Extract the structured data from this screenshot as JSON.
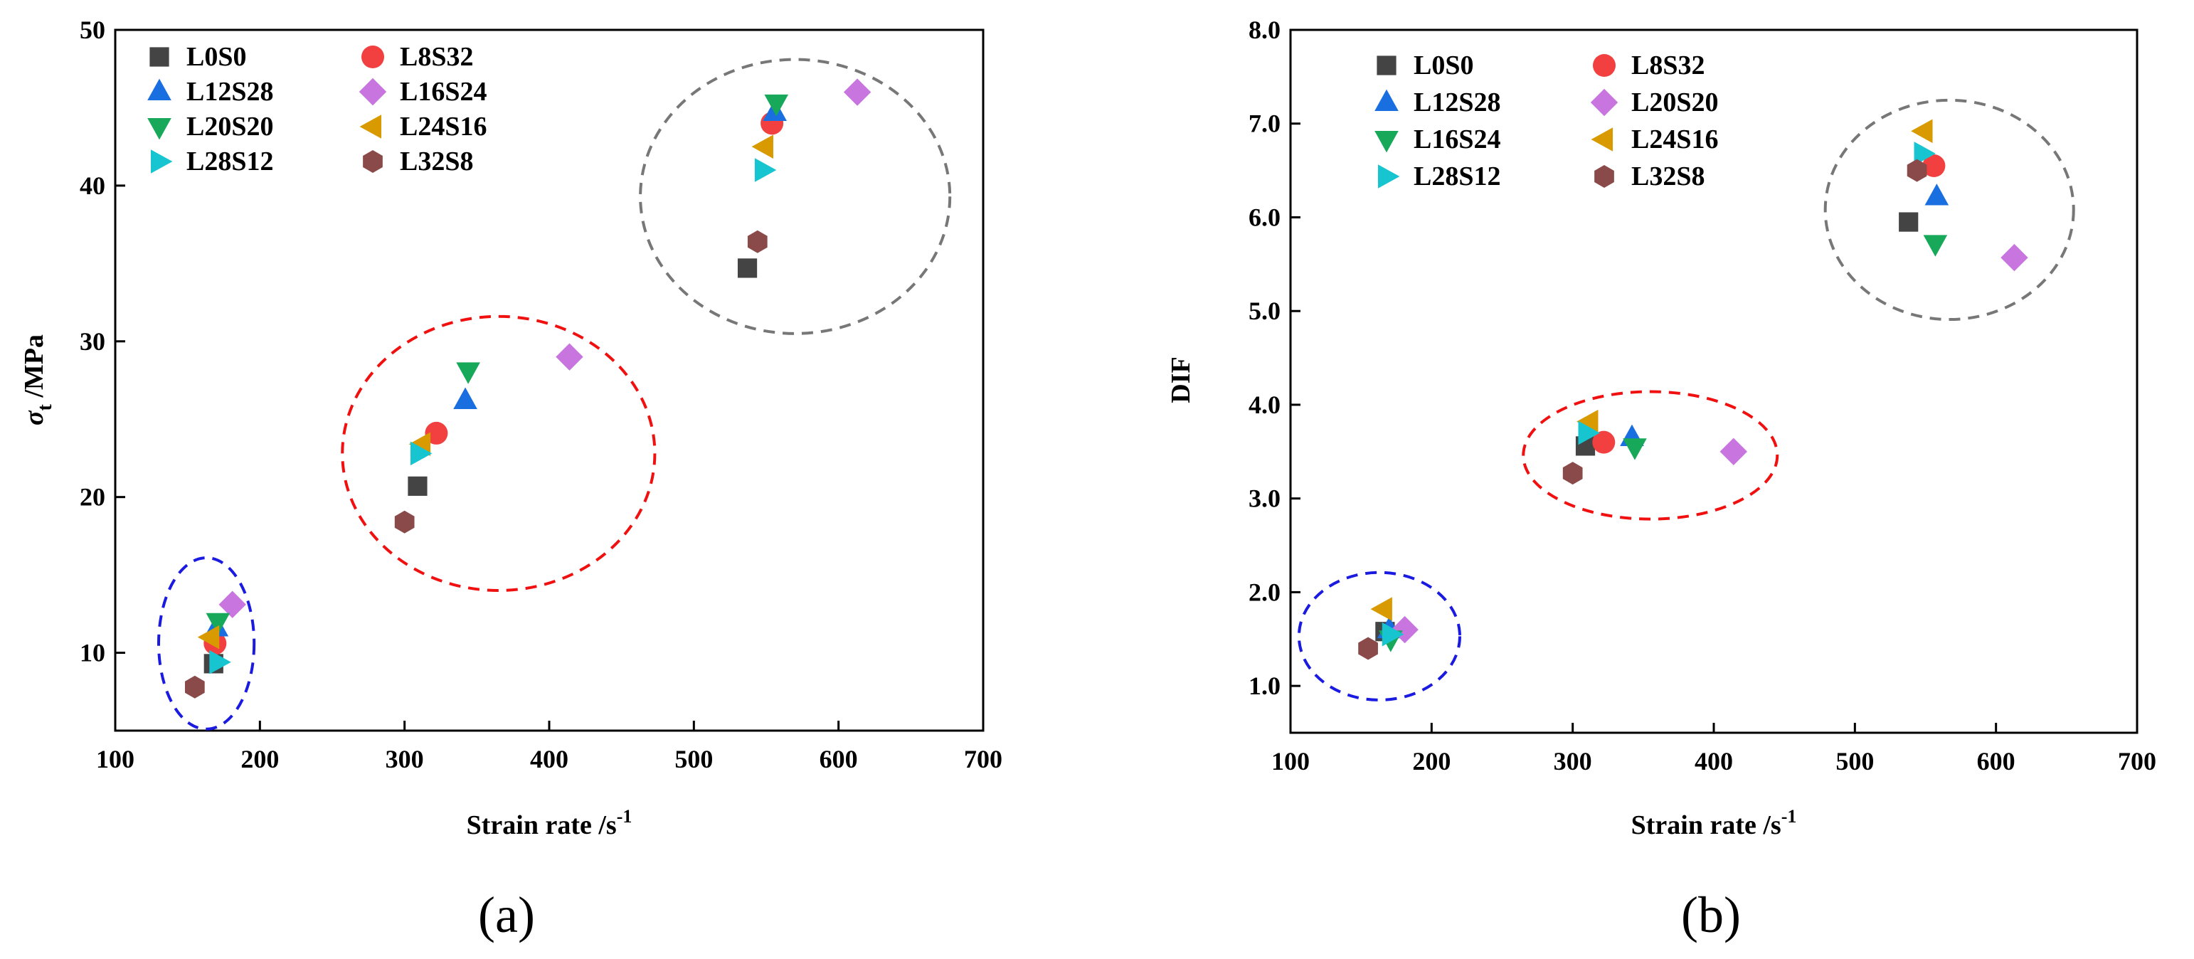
{
  "figure": {
    "panel_labels": [
      "(a)",
      "(b)"
    ]
  },
  "chart_data": [
    {
      "type": "scatter",
      "panel": "(a)",
      "title": "",
      "xlabel": "Strain rate /s",
      "xlabel_sup": "-1",
      "ylabel_sym": "σ",
      "ylabel_sub": "t",
      "ylabel_rest": " /MPa",
      "xlim": [
        100,
        700
      ],
      "ylim": [
        5,
        50
      ],
      "xticks": [
        100,
        200,
        300,
        400,
        500,
        600,
        700
      ],
      "yticks": [
        10,
        20,
        30,
        40,
        50
      ],
      "ytick_decimals": 0,
      "legend_position": "top-left",
      "legend_columns": 2,
      "series": [
        {
          "name": "L0S0",
          "marker": "square",
          "color": "#444444",
          "points": [
            [
              168,
              9.3
            ],
            [
              309,
              20.7
            ],
            [
              537,
              34.7
            ]
          ]
        },
        {
          "name": "L8S32",
          "marker": "circle",
          "color": "#f24040",
          "points": [
            [
              169,
              10.6
            ],
            [
              322,
              24.1
            ],
            [
              554,
              44.0
            ]
          ]
        },
        {
          "name": "L12S28",
          "marker": "triangle-up",
          "color": "#1a6fe0",
          "points": [
            [
              170,
              11.6
            ],
            [
              342,
              26.2
            ],
            [
              556,
              44.7
            ]
          ]
        },
        {
          "name": "L16S24",
          "marker": "diamond",
          "color": "#c875e0",
          "points": [
            [
              181,
              13.1
            ],
            [
              414,
              29.0
            ],
            [
              613,
              46.0
            ]
          ]
        },
        {
          "name": "L20S20",
          "marker": "triangle-down",
          "color": "#17a85a",
          "points": [
            [
              171,
              12.0
            ],
            [
              344,
              28.1
            ],
            [
              557,
              45.3
            ]
          ]
        },
        {
          "name": "L24S16",
          "marker": "triangle-left",
          "color": "#d99a00",
          "points": [
            [
              166,
              11.0
            ],
            [
              312,
              23.4
            ],
            [
              549,
              42.5
            ]
          ]
        },
        {
          "name": "L28S12",
          "marker": "triangle-right",
          "color": "#17c5d0",
          "points": [
            [
              171,
              9.4
            ],
            [
              310,
              22.8
            ],
            [
              548,
              41.0
            ]
          ]
        },
        {
          "name": "L32S8",
          "marker": "hexagon",
          "color": "#8b4a4a",
          "points": [
            [
              155,
              7.8
            ],
            [
              300,
              18.4
            ],
            [
              544,
              36.4
            ]
          ]
        }
      ],
      "annotations": [
        {
          "type": "ellipse",
          "center": [
            163,
            10.6
          ],
          "radii": [
            33,
            5.5
          ],
          "color": "#1a1ae0"
        },
        {
          "type": "ellipse",
          "center": [
            365,
            22.8
          ],
          "radii": [
            108,
            8.8
          ],
          "color": "#f01010"
        },
        {
          "type": "ellipse",
          "center": [
            570,
            39.3
          ],
          "radii": [
            107,
            8.8
          ],
          "color": "#777777"
        }
      ]
    },
    {
      "type": "scatter",
      "panel": "(b)",
      "title": "",
      "xlabel": "Strain rate /s",
      "xlabel_sup": "-1",
      "ylabel_sym": "",
      "ylabel_sub": "",
      "ylabel_rest": "DIF",
      "xlim": [
        100,
        700
      ],
      "ylim": [
        0.5,
        8.0
      ],
      "xticks": [
        100,
        200,
        300,
        400,
        500,
        600,
        700
      ],
      "yticks": [
        1.0,
        2.0,
        3.0,
        4.0,
        5.0,
        6.0,
        7.0,
        8.0
      ],
      "ytick_decimals": 1,
      "legend_position": "top-left",
      "legend_columns": 2,
      "series": [
        {
          "name": "L0S0",
          "marker": "square",
          "color": "#444444",
          "points": [
            [
              167,
              1.58
            ],
            [
              309,
              3.56
            ],
            [
              538,
              5.95
            ]
          ]
        },
        {
          "name": "L8S32",
          "marker": "circle",
          "color": "#f24040",
          "points": [
            [
              322,
              3.6
            ],
            [
              556,
              6.55
            ]
          ]
        },
        {
          "name": "L12S28",
          "marker": "triangle-up",
          "color": "#1a6fe0",
          "points": [
            [
              170,
              1.6
            ],
            [
              342,
              3.65
            ],
            [
              558,
              6.22
            ]
          ]
        },
        {
          "name": "L20S20",
          "marker": "diamond",
          "color": "#c875e0",
          "points": [
            [
              181,
              1.6
            ],
            [
              414,
              3.5
            ],
            [
              613,
              5.57
            ]
          ]
        },
        {
          "name": "L16S24",
          "marker": "triangle-down",
          "color": "#17a85a",
          "points": [
            [
              171,
              1.5
            ],
            [
              344,
              3.55
            ],
            [
              557,
              5.72
            ]
          ]
        },
        {
          "name": "L24S16",
          "marker": "triangle-left",
          "color": "#d99a00",
          "points": [
            [
              166,
              1.82
            ],
            [
              312,
              3.82
            ],
            [
              549,
              6.92
            ]
          ]
        },
        {
          "name": "L28S12",
          "marker": "triangle-right",
          "color": "#17c5d0",
          "points": [
            [
              171,
              1.55
            ],
            [
              310,
              3.7
            ],
            [
              548,
              6.68
            ]
          ]
        },
        {
          "name": "L32S8",
          "marker": "hexagon",
          "color": "#8b4a4a",
          "points": [
            [
              155,
              1.4
            ],
            [
              300,
              3.27
            ],
            [
              544,
              6.5
            ]
          ]
        }
      ],
      "annotations": [
        {
          "type": "ellipse",
          "center": [
            163,
            1.53
          ],
          "radii": [
            57,
            0.68
          ],
          "color": "#1a1ae0"
        },
        {
          "type": "ellipse",
          "center": [
            355,
            3.46
          ],
          "radii": [
            90,
            0.68
          ],
          "color": "#f01010"
        },
        {
          "type": "ellipse",
          "center": [
            567,
            6.08
          ],
          "radii": [
            88,
            1.17
          ],
          "color": "#777777"
        }
      ]
    }
  ]
}
